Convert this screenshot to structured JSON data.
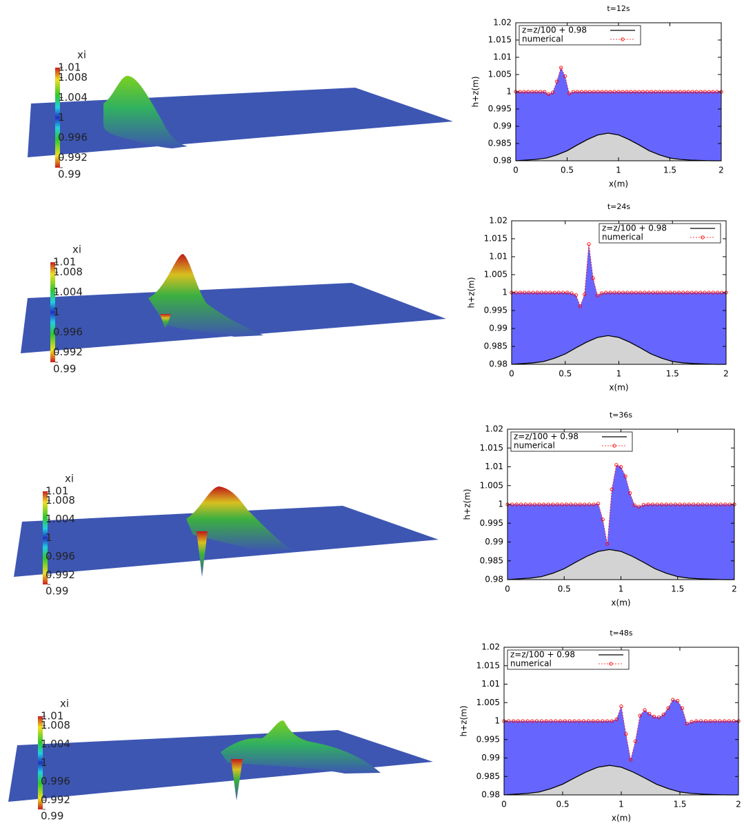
{
  "surfaces": [
    {
      "colorbar_title": "xi",
      "colorbar_lim": [
        0.99,
        1.01
      ],
      "colorbar_ticks": [
        1.01,
        1.008,
        1.004,
        1,
        0.996,
        0.992,
        0.99
      ]
    },
    {
      "colorbar_title": "xi",
      "colorbar_lim": [
        0.99,
        1.01
      ],
      "colorbar_ticks": [
        1.01,
        1.008,
        1.004,
        1,
        0.996,
        0.992,
        0.99
      ]
    },
    {
      "colorbar_title": "xi",
      "colorbar_lim": [
        0.99,
        1.01
      ],
      "colorbar_ticks": [
        1.01,
        1.008,
        1.004,
        1,
        0.996,
        0.992,
        0.99
      ]
    },
    {
      "colorbar_title": "xi",
      "colorbar_lim": [
        0.99,
        1.01
      ],
      "colorbar_ticks": [
        1.01,
        1.008,
        1.004,
        1,
        0.996,
        0.992,
        0.99
      ]
    }
  ],
  "chart_data": [
    {
      "type": "line",
      "title": "t=12s",
      "xlabel": "x(m)",
      "ylabel": "h+z(m)",
      "xlim": [
        0,
        2
      ],
      "ylim": [
        0.98,
        1.02
      ],
      "xticks": [
        0,
        0.5,
        1,
        1.5,
        2
      ],
      "yticks": [
        0.98,
        0.985,
        0.99,
        0.995,
        1,
        1.005,
        1.01,
        1.015,
        1.02
      ],
      "legend": "upper left",
      "series": [
        {
          "name": "z=z/100 + 0.98",
          "color": "#000000",
          "fill_color": "#d3d3d3",
          "linestyle": "solid",
          "x": [
            0,
            0.1,
            0.2,
            0.3,
            0.4,
            0.5,
            0.6,
            0.7,
            0.8,
            0.9,
            1,
            1.1,
            1.2,
            1.3,
            1.4,
            1.5,
            1.6,
            1.7,
            1.8,
            1.9,
            2
          ],
          "values": [
            0.98,
            0.9802,
            0.9804,
            0.9808,
            0.9817,
            0.9829,
            0.9846,
            0.9862,
            0.9875,
            0.988,
            0.9875,
            0.9862,
            0.9846,
            0.9829,
            0.9817,
            0.9808,
            0.9804,
            0.9802,
            0.9801,
            0.98,
            0.98
          ]
        },
        {
          "name": "numerical",
          "color": "#ff0000",
          "fill_color": "#6666ff",
          "linestyle": "dashed",
          "marker": "circle",
          "x": [
            0,
            0.04,
            0.08,
            0.12,
            0.16,
            0.2,
            0.24,
            0.28,
            0.32,
            0.36,
            0.4,
            0.44,
            0.48,
            0.52,
            0.56,
            0.6,
            0.64,
            0.68,
            0.72,
            0.76,
            0.8,
            0.84,
            0.88,
            0.92,
            0.96,
            1,
            1.04,
            1.08,
            1.12,
            1.16,
            1.2,
            1.24,
            1.28,
            1.32,
            1.36,
            1.4,
            1.44,
            1.48,
            1.52,
            1.56,
            1.6,
            1.64,
            1.68,
            1.72,
            1.76,
            1.8,
            1.84,
            1.88,
            1.92,
            1.96,
            2
          ],
          "values": [
            1,
            1,
            1,
            1,
            1,
            1,
            1,
            1,
            0.9993,
            0.9998,
            1.003,
            1.007,
            1.0045,
            0.9995,
            1,
            1,
            1,
            1,
            1,
            1,
            1,
            1,
            1,
            1,
            1,
            1,
            1,
            1,
            1,
            1,
            1,
            1,
            1,
            1,
            1,
            1,
            1,
            1,
            1,
            1,
            1,
            1,
            1,
            1,
            1,
            1,
            1,
            1,
            1,
            1,
            1
          ]
        }
      ]
    },
    {
      "type": "line",
      "title": "t=24s",
      "xlabel": "x(m)",
      "ylabel": "h+z(m)",
      "xlim": [
        0,
        2
      ],
      "ylim": [
        0.98,
        1.02
      ],
      "xticks": [
        0,
        0.5,
        1,
        1.5,
        2
      ],
      "yticks": [
        0.98,
        0.985,
        0.99,
        0.995,
        1,
        1.005,
        1.01,
        1.015,
        1.02
      ],
      "legend": "upper right",
      "series": [
        {
          "name": "z=z/100 + 0.98",
          "color": "#000000",
          "fill_color": "#d3d3d3",
          "linestyle": "solid",
          "x": [
            0,
            0.1,
            0.2,
            0.3,
            0.4,
            0.5,
            0.6,
            0.7,
            0.8,
            0.9,
            1,
            1.1,
            1.2,
            1.3,
            1.4,
            1.5,
            1.6,
            1.7,
            1.8,
            1.9,
            2
          ],
          "values": [
            0.98,
            0.9802,
            0.9804,
            0.9808,
            0.9817,
            0.9829,
            0.9846,
            0.9862,
            0.9875,
            0.988,
            0.9875,
            0.9862,
            0.9846,
            0.9829,
            0.9817,
            0.9808,
            0.9804,
            0.9802,
            0.9801,
            0.98,
            0.98
          ]
        },
        {
          "name": "numerical",
          "color": "#ff0000",
          "fill_color": "#6666ff",
          "linestyle": "dashed",
          "marker": "circle",
          "x": [
            0,
            0.04,
            0.08,
            0.12,
            0.16,
            0.2,
            0.24,
            0.28,
            0.32,
            0.36,
            0.4,
            0.44,
            0.48,
            0.52,
            0.56,
            0.6,
            0.64,
            0.68,
            0.72,
            0.76,
            0.8,
            0.84,
            0.88,
            0.92,
            0.96,
            1,
            1.04,
            1.08,
            1.12,
            1.16,
            1.2,
            1.24,
            1.28,
            1.32,
            1.36,
            1.4,
            1.44,
            1.48,
            1.52,
            1.56,
            1.6,
            1.64,
            1.68,
            1.72,
            1.76,
            1.8,
            1.84,
            1.88,
            1.92,
            1.96,
            2
          ],
          "values": [
            1,
            1,
            1,
            1,
            1,
            1,
            1,
            1,
            1,
            1,
            1,
            1,
            1,
            1,
            0.9998,
            0.9993,
            0.9962,
            0.9995,
            1.0135,
            1.004,
            0.9992,
            0.9998,
            1,
            1,
            1,
            1,
            1,
            1,
            1,
            1,
            1,
            1,
            1,
            1,
            1,
            1,
            1,
            1,
            1,
            1,
            1,
            1,
            1,
            1,
            1,
            1,
            1,
            1,
            1,
            1,
            1
          ]
        }
      ]
    },
    {
      "type": "line",
      "title": "t=36s",
      "xlabel": "x(m)",
      "ylabel": "h+z(m)",
      "xlim": [
        0,
        2
      ],
      "ylim": [
        0.98,
        1.02
      ],
      "xticks": [
        0,
        0.5,
        1,
        1.5,
        2
      ],
      "yticks": [
        0.98,
        0.985,
        0.99,
        0.995,
        1,
        1.005,
        1.01,
        1.015,
        1.02
      ],
      "legend": "upper left",
      "series": [
        {
          "name": "z=z/100 + 0.98",
          "color": "#000000",
          "fill_color": "#d3d3d3",
          "linestyle": "solid",
          "x": [
            0,
            0.1,
            0.2,
            0.3,
            0.4,
            0.5,
            0.6,
            0.7,
            0.8,
            0.9,
            1,
            1.1,
            1.2,
            1.3,
            1.4,
            1.5,
            1.6,
            1.7,
            1.8,
            1.9,
            2
          ],
          "values": [
            0.98,
            0.9802,
            0.9804,
            0.9808,
            0.9817,
            0.9829,
            0.9846,
            0.9862,
            0.9875,
            0.988,
            0.9875,
            0.9862,
            0.9846,
            0.9829,
            0.9817,
            0.9808,
            0.9804,
            0.9802,
            0.9801,
            0.98,
            0.98
          ]
        },
        {
          "name": "numerical",
          "color": "#ff0000",
          "fill_color": "#6666ff",
          "linestyle": "dashed",
          "marker": "circle",
          "x": [
            0,
            0.04,
            0.08,
            0.12,
            0.16,
            0.2,
            0.24,
            0.28,
            0.32,
            0.36,
            0.4,
            0.44,
            0.48,
            0.52,
            0.56,
            0.6,
            0.64,
            0.68,
            0.72,
            0.76,
            0.8,
            0.84,
            0.88,
            0.92,
            0.96,
            1,
            1.04,
            1.08,
            1.12,
            1.16,
            1.2,
            1.24,
            1.28,
            1.32,
            1.36,
            1.4,
            1.44,
            1.48,
            1.52,
            1.56,
            1.6,
            1.64,
            1.68,
            1.72,
            1.76,
            1.8,
            1.84,
            1.88,
            1.92,
            1.96,
            2
          ],
          "values": [
            1,
            1,
            1,
            1,
            1,
            1,
            1,
            1,
            1,
            1,
            1,
            1,
            1,
            1,
            1,
            1,
            1,
            1,
            1,
            1,
            1.0002,
            0.996,
            0.9895,
            1.004,
            1.0105,
            1.01,
            1.0075,
            1.003,
            0.9998,
            0.9994,
            0.9999,
            1,
            1,
            1,
            1,
            1,
            1,
            1,
            1,
            1,
            1,
            1,
            1,
            1,
            1,
            1,
            1,
            1,
            1,
            1,
            1
          ]
        }
      ]
    },
    {
      "type": "line",
      "title": "t=48s",
      "xlabel": "x(m)",
      "ylabel": "h+z(m)",
      "xlim": [
        0,
        2
      ],
      "ylim": [
        0.98,
        1.02
      ],
      "xticks": [
        0,
        0.5,
        1,
        1.5,
        2
      ],
      "yticks": [
        0.98,
        0.985,
        0.99,
        0.995,
        1,
        1.005,
        1.01,
        1.015,
        1.02
      ],
      "legend": "upper left",
      "series": [
        {
          "name": "z=z/100 + 0.98",
          "color": "#000000",
          "fill_color": "#d3d3d3",
          "linestyle": "solid",
          "x": [
            0,
            0.1,
            0.2,
            0.3,
            0.4,
            0.5,
            0.6,
            0.7,
            0.8,
            0.9,
            1,
            1.1,
            1.2,
            1.3,
            1.4,
            1.5,
            1.6,
            1.7,
            1.8,
            1.9,
            2
          ],
          "values": [
            0.98,
            0.9802,
            0.9804,
            0.9808,
            0.9817,
            0.9829,
            0.9846,
            0.9862,
            0.9875,
            0.988,
            0.9875,
            0.9862,
            0.9846,
            0.9829,
            0.9817,
            0.9808,
            0.9804,
            0.9802,
            0.9801,
            0.98,
            0.98
          ]
        },
        {
          "name": "numerical",
          "color": "#ff0000",
          "fill_color": "#6666ff",
          "linestyle": "dashed",
          "marker": "circle",
          "x": [
            0,
            0.04,
            0.08,
            0.12,
            0.16,
            0.2,
            0.24,
            0.28,
            0.32,
            0.36,
            0.4,
            0.44,
            0.48,
            0.52,
            0.56,
            0.6,
            0.64,
            0.68,
            0.72,
            0.76,
            0.8,
            0.84,
            0.88,
            0.92,
            0.96,
            1,
            1.04,
            1.08,
            1.12,
            1.16,
            1.2,
            1.24,
            1.28,
            1.32,
            1.36,
            1.4,
            1.44,
            1.48,
            1.52,
            1.56,
            1.6,
            1.64,
            1.68,
            1.72,
            1.76,
            1.8,
            1.84,
            1.88,
            1.92,
            1.96,
            2
          ],
          "values": [
            1,
            1,
            1,
            1,
            1,
            1,
            1,
            1,
            1,
            1,
            1,
            1,
            1,
            1,
            1,
            1,
            1,
            1,
            1,
            1,
            1,
            1,
            1,
            1,
            1.0005,
            1.004,
            0.9965,
            0.9895,
            0.9945,
            1.0015,
            1.003,
            1.002,
            1.0012,
            1.001,
            1.0018,
            1.0035,
            1.0058,
            1.0055,
            1.0035,
            0.9993,
            0.9998,
            1,
            1,
            1,
            1,
            1,
            1,
            1,
            1,
            1,
            1
          ]
        }
      ]
    }
  ]
}
